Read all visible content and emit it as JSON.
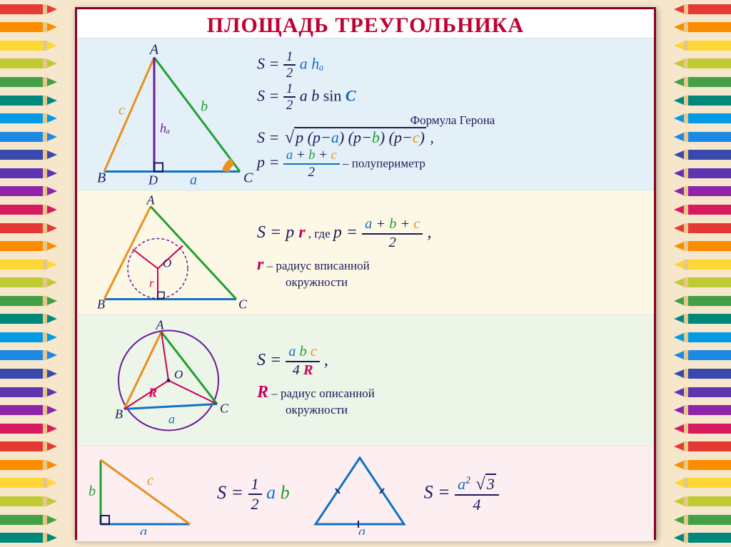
{
  "title": "ПЛОЩАДЬ ТРЕУГОЛЬНИКА",
  "pencil_colors": [
    "#e53935",
    "#fb8c00",
    "#fdd835",
    "#c0ca33",
    "#43a047",
    "#00897b",
    "#039be5",
    "#1e88e5",
    "#3949ab",
    "#5e35b1",
    "#8e24aa",
    "#d81b60",
    "#e53935",
    "#fb8c00",
    "#fdd835",
    "#c0ca33",
    "#43a047",
    "#00897b",
    "#039be5",
    "#1e88e5",
    "#3949ab",
    "#5e35b1",
    "#8e24aa",
    "#d81b60",
    "#e53935",
    "#fb8c00",
    "#fdd835",
    "#c0ca33",
    "#43a047",
    "#00897b"
  ],
  "colors": {
    "A": "#c96b00",
    "B": "#1a8a2a",
    "C": "#0a6ab8",
    "navy": "#1a1a5a",
    "r": "#c9005a",
    "R": "#c9005a",
    "purple": "#6a1b9a",
    "orange": "#e89020",
    "green": "#1fa030",
    "blue": "#1272c4",
    "magenta": "#c9005a"
  },
  "s1": {
    "vertices": [
      "A",
      "B",
      "C",
      "D"
    ],
    "sides": [
      "a",
      "b",
      "c",
      "hₐ"
    ],
    "f1_pre": "S = ",
    "f1_num": "1",
    "f1_den": "2",
    "f1_post": " a hₐ",
    "f2_pre": "S = ",
    "f2_num": "1",
    "f2_den": "2",
    "f2_ab": " a b ",
    "f2_sin": "sin",
    "f2_C": " C",
    "heron_label": "Формула Герона",
    "f3_pre": "S = ",
    "f3_rad": "p (p−a) (p−b) (p−c)",
    "f3_comma": " ,",
    "f4_p": "p = ",
    "f4_num": "a + b + c",
    "f4_den": "2",
    "f4_dash": " – ",
    "f4_txt": "полупериметр"
  },
  "s2": {
    "vertices": [
      "A",
      "B",
      "C",
      "O"
    ],
    "r": "r",
    "f1_pre": "S = p ",
    "f1_r": "r",
    "f1_where": " ,   где  ",
    "f1_p": "p = ",
    "f1_num": "a + b + c",
    "f1_den": "2",
    "f1_comma": " ,",
    "f2_r": "r",
    "f2_dash": " – ",
    "f2_txt1": "радиус вписанной",
    "f2_txt2": "окружности"
  },
  "s3": {
    "vertices": [
      "A",
      "B",
      "C",
      "O"
    ],
    "R": "R",
    "a": "a",
    "f1_pre": "S = ",
    "f1_num": "a b c",
    "f1_den": "4 R",
    "f1_comma": " ,",
    "f2_R": "R",
    "f2_dash": " – ",
    "f2_txt1": "радиус описанной",
    "f2_txt2": "окружности"
  },
  "s4": {
    "sides": [
      "a",
      "b",
      "c"
    ],
    "a2": "a",
    "f1_pre": "S = ",
    "f1_num": "1",
    "f1_den": "2",
    "f1_post": " a b",
    "f2_pre": "S = ",
    "f2_num_a": "a",
    "f2_num_sup": "2",
    "f2_rad": "3",
    "f2_den": "4"
  }
}
